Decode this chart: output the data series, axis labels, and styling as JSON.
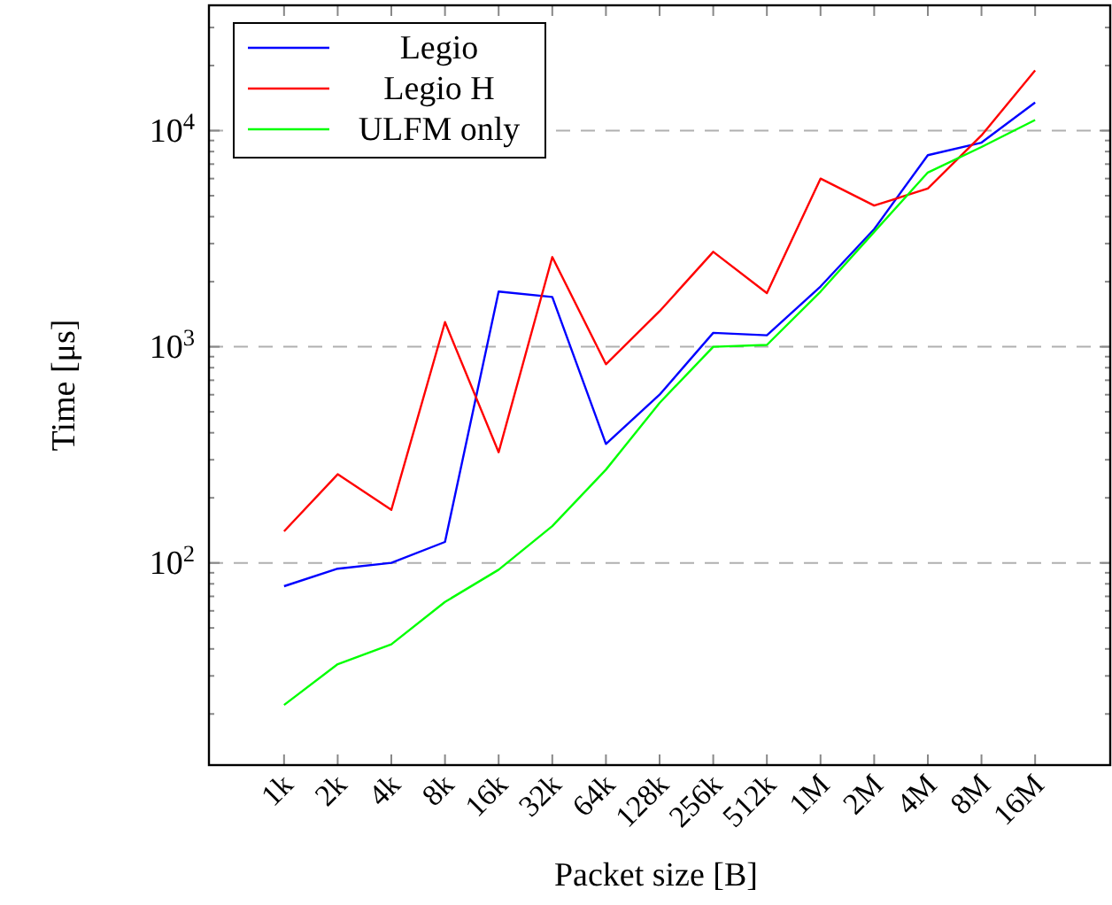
{
  "chart_data": {
    "type": "line",
    "xlabel": "Packet size [B]",
    "ylabel": "Time [μs]",
    "categories": [
      "1k",
      "2k",
      "4k",
      "8k",
      "16k",
      "32k",
      "64k",
      "128k",
      "256k",
      "512k",
      "1M",
      "2M",
      "4M",
      "8M",
      "16M"
    ],
    "series": [
      {
        "name": "Legio",
        "color": "#0000ff",
        "values": [
          78,
          94,
          100,
          125,
          1800,
          1700,
          355,
          600,
          1160,
          1130,
          1900,
          3500,
          7700,
          8800,
          13500
        ]
      },
      {
        "name": "Legio H",
        "color": "#ff0000",
        "values": [
          140,
          257,
          176,
          1300,
          325,
          2600,
          830,
          1460,
          2750,
          1770,
          6000,
          4500,
          5400,
          9500,
          19000
        ]
      },
      {
        "name": "ULFM only",
        "color": "#00ff00",
        "values": [
          22,
          34,
          42,
          66,
          93,
          148,
          270,
          550,
          1000,
          1020,
          1800,
          3400,
          6400,
          8400,
          11200
        ]
      }
    ],
    "log": "y",
    "ylim": [
      11.6,
      38000
    ],
    "yticks": [
      {
        "value": 20,
        "label": null
      },
      {
        "value": 30,
        "label": null
      },
      {
        "value": 40,
        "label": null
      },
      {
        "value": 50,
        "label": null
      },
      {
        "value": 60,
        "label": null
      },
      {
        "value": 70,
        "label": null
      },
      {
        "value": 80,
        "label": null
      },
      {
        "value": 90,
        "label": null
      },
      {
        "value": 100,
        "label": "10$^{2}$"
      },
      {
        "value": 200,
        "label": null
      },
      {
        "value": 300,
        "label": null
      },
      {
        "value": 400,
        "label": null
      },
      {
        "value": 500,
        "label": null
      },
      {
        "value": 600,
        "label": null
      },
      {
        "value": 700,
        "label": null
      },
      {
        "value": 800,
        "label": null
      },
      {
        "value": 900,
        "label": null
      },
      {
        "value": 1000,
        "label": "10$^{3}$"
      },
      {
        "value": 2000,
        "label": null
      },
      {
        "value": 3000,
        "label": null
      },
      {
        "value": 4000,
        "label": null
      },
      {
        "value": 5000,
        "label": null
      },
      {
        "value": 6000,
        "label": null
      },
      {
        "value": 7000,
        "label": null
      },
      {
        "value": 8000,
        "label": null
      },
      {
        "value": 9000,
        "label": null
      },
      {
        "value": 10000,
        "label": "10$^{4}$"
      },
      {
        "value": 20000,
        "label": null
      },
      {
        "value": 30000,
        "label": null
      }
    ],
    "grid": "y",
    "legend": "top left",
    "marker": "none",
    "line_style": "solid"
  }
}
